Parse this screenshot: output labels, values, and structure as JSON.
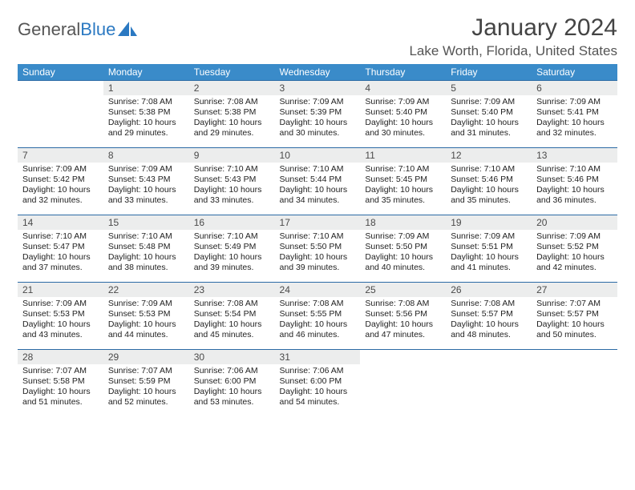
{
  "logo": {
    "text_gray": "General",
    "text_blue": "Blue"
  },
  "title": "January 2024",
  "location": "Lake Worth, Florida, United States",
  "colors": {
    "header_bg": "#3a8bc9",
    "daynum_bg": "#eceded",
    "row_border": "#2b6aa5",
    "logo_blue": "#2b79c2"
  },
  "weekdays": [
    "Sunday",
    "Monday",
    "Tuesday",
    "Wednesday",
    "Thursday",
    "Friday",
    "Saturday"
  ],
  "weeks": [
    [
      null,
      {
        "n": "1",
        "sr": "7:08 AM",
        "ss": "5:38 PM",
        "dl": "10 hours and 29 minutes."
      },
      {
        "n": "2",
        "sr": "7:08 AM",
        "ss": "5:38 PM",
        "dl": "10 hours and 29 minutes."
      },
      {
        "n": "3",
        "sr": "7:09 AM",
        "ss": "5:39 PM",
        "dl": "10 hours and 30 minutes."
      },
      {
        "n": "4",
        "sr": "7:09 AM",
        "ss": "5:40 PM",
        "dl": "10 hours and 30 minutes."
      },
      {
        "n": "5",
        "sr": "7:09 AM",
        "ss": "5:40 PM",
        "dl": "10 hours and 31 minutes."
      },
      {
        "n": "6",
        "sr": "7:09 AM",
        "ss": "5:41 PM",
        "dl": "10 hours and 32 minutes."
      }
    ],
    [
      {
        "n": "7",
        "sr": "7:09 AM",
        "ss": "5:42 PM",
        "dl": "10 hours and 32 minutes."
      },
      {
        "n": "8",
        "sr": "7:09 AM",
        "ss": "5:43 PM",
        "dl": "10 hours and 33 minutes."
      },
      {
        "n": "9",
        "sr": "7:10 AM",
        "ss": "5:43 PM",
        "dl": "10 hours and 33 minutes."
      },
      {
        "n": "10",
        "sr": "7:10 AM",
        "ss": "5:44 PM",
        "dl": "10 hours and 34 minutes."
      },
      {
        "n": "11",
        "sr": "7:10 AM",
        "ss": "5:45 PM",
        "dl": "10 hours and 35 minutes."
      },
      {
        "n": "12",
        "sr": "7:10 AM",
        "ss": "5:46 PM",
        "dl": "10 hours and 35 minutes."
      },
      {
        "n": "13",
        "sr": "7:10 AM",
        "ss": "5:46 PM",
        "dl": "10 hours and 36 minutes."
      }
    ],
    [
      {
        "n": "14",
        "sr": "7:10 AM",
        "ss": "5:47 PM",
        "dl": "10 hours and 37 minutes."
      },
      {
        "n": "15",
        "sr": "7:10 AM",
        "ss": "5:48 PM",
        "dl": "10 hours and 38 minutes."
      },
      {
        "n": "16",
        "sr": "7:10 AM",
        "ss": "5:49 PM",
        "dl": "10 hours and 39 minutes."
      },
      {
        "n": "17",
        "sr": "7:10 AM",
        "ss": "5:50 PM",
        "dl": "10 hours and 39 minutes."
      },
      {
        "n": "18",
        "sr": "7:09 AM",
        "ss": "5:50 PM",
        "dl": "10 hours and 40 minutes."
      },
      {
        "n": "19",
        "sr": "7:09 AM",
        "ss": "5:51 PM",
        "dl": "10 hours and 41 minutes."
      },
      {
        "n": "20",
        "sr": "7:09 AM",
        "ss": "5:52 PM",
        "dl": "10 hours and 42 minutes."
      }
    ],
    [
      {
        "n": "21",
        "sr": "7:09 AM",
        "ss": "5:53 PM",
        "dl": "10 hours and 43 minutes."
      },
      {
        "n": "22",
        "sr": "7:09 AM",
        "ss": "5:53 PM",
        "dl": "10 hours and 44 minutes."
      },
      {
        "n": "23",
        "sr": "7:08 AM",
        "ss": "5:54 PM",
        "dl": "10 hours and 45 minutes."
      },
      {
        "n": "24",
        "sr": "7:08 AM",
        "ss": "5:55 PM",
        "dl": "10 hours and 46 minutes."
      },
      {
        "n": "25",
        "sr": "7:08 AM",
        "ss": "5:56 PM",
        "dl": "10 hours and 47 minutes."
      },
      {
        "n": "26",
        "sr": "7:08 AM",
        "ss": "5:57 PM",
        "dl": "10 hours and 48 minutes."
      },
      {
        "n": "27",
        "sr": "7:07 AM",
        "ss": "5:57 PM",
        "dl": "10 hours and 50 minutes."
      }
    ],
    [
      {
        "n": "28",
        "sr": "7:07 AM",
        "ss": "5:58 PM",
        "dl": "10 hours and 51 minutes."
      },
      {
        "n": "29",
        "sr": "7:07 AM",
        "ss": "5:59 PM",
        "dl": "10 hours and 52 minutes."
      },
      {
        "n": "30",
        "sr": "7:06 AM",
        "ss": "6:00 PM",
        "dl": "10 hours and 53 minutes."
      },
      {
        "n": "31",
        "sr": "7:06 AM",
        "ss": "6:00 PM",
        "dl": "10 hours and 54 minutes."
      },
      null,
      null,
      null
    ]
  ],
  "labels": {
    "sunrise": "Sunrise: ",
    "sunset": "Sunset: ",
    "daylight": "Daylight: "
  }
}
